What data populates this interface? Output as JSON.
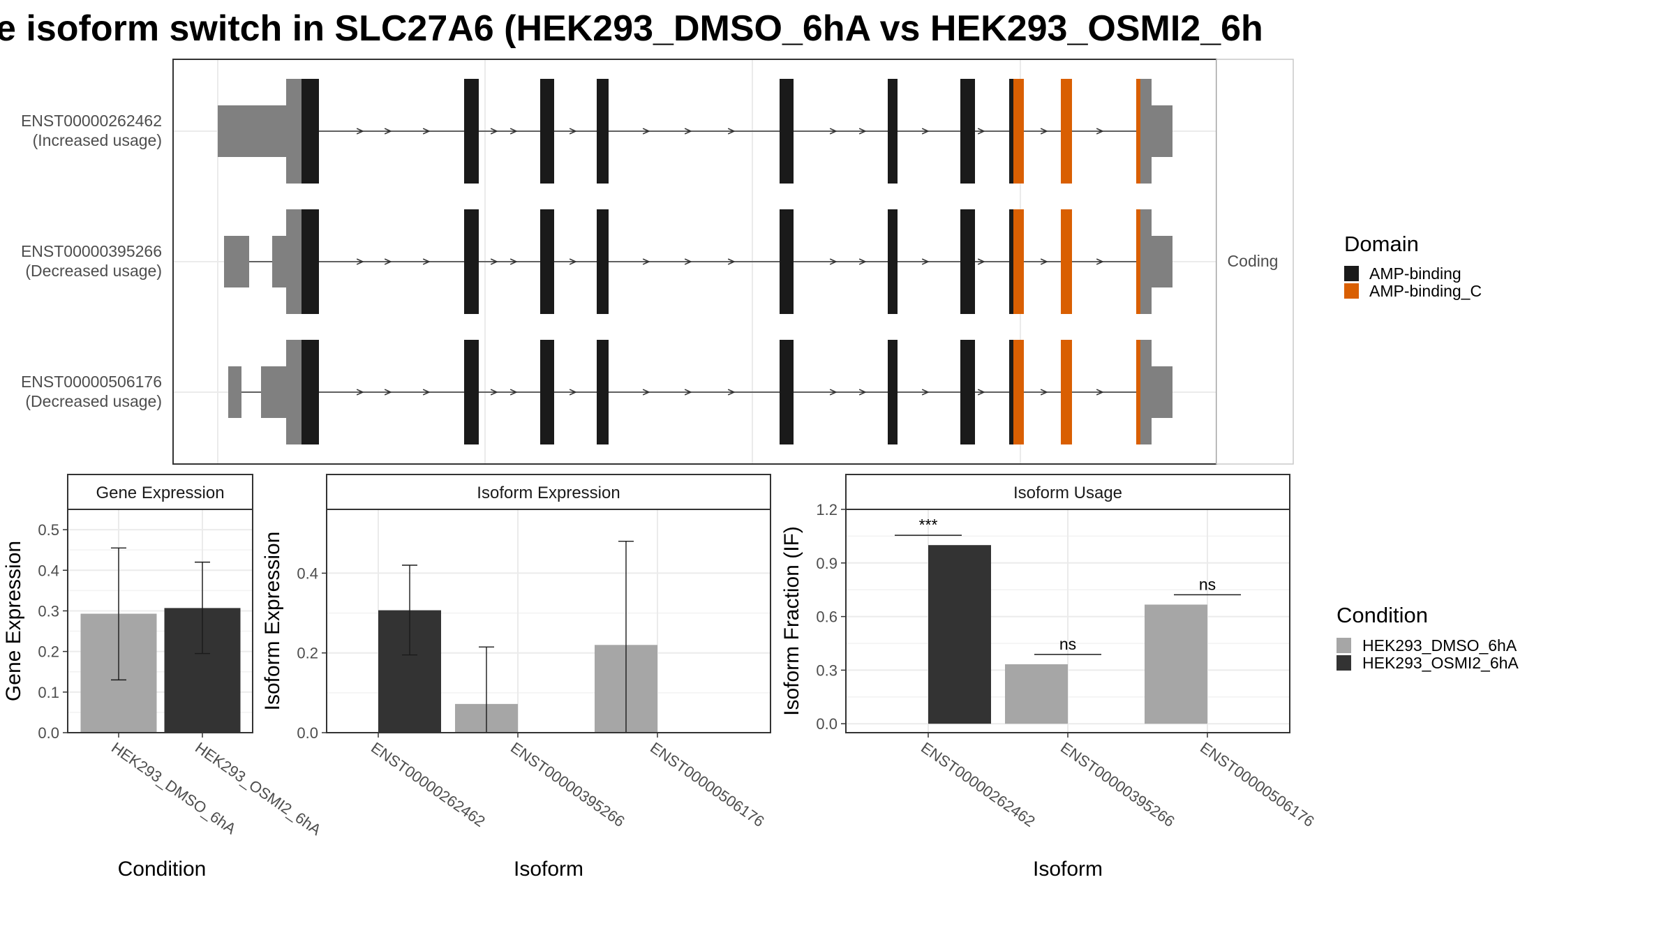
{
  "title": "e isoform switch in SLC27A6 (HEK293_DMSO_6hA vs HEK293_OSMI2_6h",
  "colors": {
    "utr": "#808080",
    "amp_binding": "#1a1a1a",
    "amp_binding_c": "#d95f02",
    "dmso": "#a6a6a6",
    "osmi2": "#333333",
    "grid": "#ebebeb",
    "border": "#333333"
  },
  "transcript_panel": {
    "strip_label": "Coding",
    "transcripts": [
      {
        "id": "ENST00000262462",
        "usage": "(Increased usage)"
      },
      {
        "id": "ENST00000395266",
        "usage": "(Decreased usage)"
      },
      {
        "id": "ENST00000506176",
        "usage": "(Decreased usage)"
      }
    ]
  },
  "legends": {
    "domain": {
      "title": "Domain",
      "items": [
        "AMP-binding",
        "AMP-binding_C"
      ]
    },
    "condition": {
      "title": "Condition",
      "items": [
        "HEK293_DMSO_6hA",
        "HEK293_OSMI2_6hA"
      ]
    }
  },
  "chart_data": [
    {
      "type": "bar",
      "strip": "Gene Expression",
      "xlabel": "Condition",
      "ylabel": "Gene Expression",
      "ylim": [
        0,
        0.55
      ],
      "yticks": [
        "0.0",
        "0.1",
        "0.2",
        "0.3",
        "0.4",
        "0.5"
      ],
      "categories": [
        "HEK293_DMSO_6hA",
        "HEK293_OSMI2_6hA"
      ],
      "series": [
        {
          "name": "HEK293_DMSO_6hA",
          "values": [
            0.293,
            null
          ],
          "err_low": [
            0.13,
            null
          ],
          "err_high": [
            0.455,
            null
          ]
        },
        {
          "name": "HEK293_OSMI2_6hA",
          "values": [
            null,
            0.307
          ],
          "err_low": [
            null,
            0.195
          ],
          "err_high": [
            null,
            0.42
          ]
        }
      ]
    },
    {
      "type": "bar",
      "strip": "Isoform Expression",
      "xlabel": "Isoform",
      "ylabel": "Isoform Expression",
      "ylim": [
        0,
        0.56
      ],
      "yticks": [
        "0.0",
        "0.2",
        "0.4"
      ],
      "categories": [
        "ENST00000262462",
        "ENST00000395266",
        "ENST00000506176"
      ],
      "series": [
        {
          "name": "HEK293_DMSO_6hA",
          "values": [
            0.0,
            0.072,
            0.22
          ],
          "err_low": [
            0.0,
            0.0,
            0.0
          ],
          "err_high": [
            0.0,
            0.215,
            0.48
          ]
        },
        {
          "name": "HEK293_OSMI2_6hA",
          "values": [
            0.307,
            0.0,
            0.0
          ],
          "err_low": [
            0.195,
            0.0,
            0.0
          ],
          "err_high": [
            0.42,
            0.0,
            0.0
          ]
        }
      ]
    },
    {
      "type": "bar",
      "strip": "Isoform Usage",
      "xlabel": "Isoform",
      "ylabel": "Isoform Fraction (IF)",
      "ylim": [
        -0.05,
        1.2
      ],
      "yticks": [
        "0.0",
        "0.3",
        "0.6",
        "0.9",
        "1.2"
      ],
      "categories": [
        "ENST00000262462",
        "ENST00000395266",
        "ENST00000506176"
      ],
      "series": [
        {
          "name": "HEK293_DMSO_6hA",
          "values": [
            null,
            0.333,
            0.667
          ]
        },
        {
          "name": "HEK293_OSMI2_6hA",
          "values": [
            1.0,
            null,
            null
          ]
        }
      ],
      "significance": [
        "***",
        "ns",
        "ns"
      ]
    }
  ]
}
